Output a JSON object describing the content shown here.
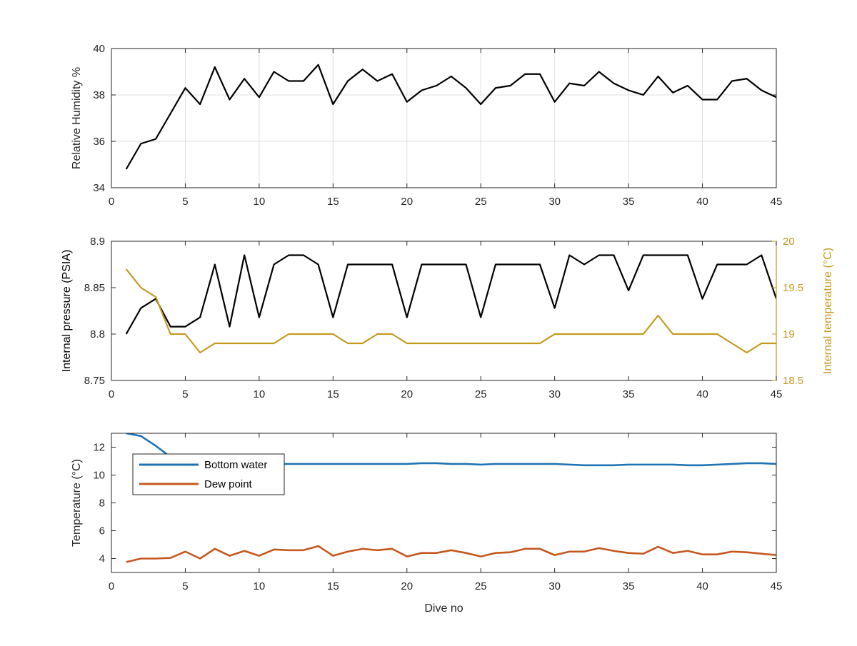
{
  "colors": {
    "axis": "#262626",
    "grid": "#dfdfdf",
    "black_series": "#000000",
    "right_axis": "#c49a1e",
    "temperature_series": "#c49a1e",
    "bottom_water": "#1f73b2",
    "dew_point": "#c5581f"
  },
  "chart_data": [
    {
      "type": "line",
      "xlabel": "",
      "ylabel": "Relative Humidity %",
      "xlim": [
        0,
        45
      ],
      "ylim": [
        34,
        40
      ],
      "xticks": [
        "0",
        "5",
        "10",
        "15",
        "20",
        "25",
        "30",
        "35",
        "40",
        "45"
      ],
      "yticks": [
        "34",
        "36",
        "38",
        "40"
      ],
      "grid": true,
      "series": [
        {
          "color": "#000000",
          "x": [
            1,
            2,
            3,
            4,
            5,
            6,
            7,
            8,
            9,
            10,
            11,
            12,
            13,
            14,
            15,
            16,
            17,
            18,
            19,
            20,
            21,
            22,
            23,
            24,
            25,
            26,
            27,
            28,
            29,
            30,
            31,
            32,
            33,
            34,
            35,
            36,
            37,
            38,
            39,
            40,
            41,
            42,
            43,
            44,
            45
          ],
          "values": [
            34.8,
            35.9,
            36.1,
            37.2,
            38.3,
            37.6,
            39.2,
            37.8,
            38.7,
            37.9,
            39.0,
            38.6,
            38.6,
            39.3,
            37.6,
            38.6,
            39.1,
            38.6,
            38.9,
            37.7,
            38.2,
            38.4,
            38.8,
            38.3,
            37.6,
            38.3,
            38.4,
            38.9,
            38.9,
            37.7,
            38.5,
            38.4,
            39.0,
            38.5,
            38.2,
            38.0,
            38.8,
            38.1,
            38.4,
            37.8,
            37.8,
            38.6,
            38.7,
            38.2,
            37.9
          ]
        }
      ]
    },
    {
      "type": "line",
      "xlabel": "",
      "ylabel": "Internal pressure (PSIA)",
      "y2label": "Internal temperature (°C)",
      "xlim": [
        0,
        45
      ],
      "ylim": [
        8.75,
        8.9
      ],
      "y2lim": [
        18.5,
        20
      ],
      "xticks": [
        "0",
        "5",
        "10",
        "15",
        "20",
        "25",
        "30",
        "35",
        "40",
        "45"
      ],
      "yticks": [
        "8.75",
        "8.8",
        "8.85",
        "8.9"
      ],
      "y2ticks": [
        "18.5",
        "19",
        "19.5",
        "20"
      ],
      "grid": false,
      "series": [
        {
          "axis": "left",
          "color": "#000000",
          "x": [
            1,
            2,
            3,
            4,
            5,
            6,
            7,
            8,
            9,
            10,
            11,
            12,
            13,
            14,
            15,
            16,
            17,
            18,
            19,
            20,
            21,
            22,
            23,
            24,
            25,
            26,
            27,
            28,
            29,
            30,
            31,
            32,
            33,
            34,
            35,
            36,
            37,
            38,
            39,
            40,
            41,
            42,
            43,
            44,
            45
          ],
          "values": [
            8.8,
            8.828,
            8.838,
            8.808,
            8.808,
            8.818,
            8.875,
            8.808,
            8.885,
            8.818,
            8.875,
            8.885,
            8.885,
            8.875,
            8.818,
            8.875,
            8.875,
            8.875,
            8.875,
            8.818,
            8.875,
            8.875,
            8.875,
            8.875,
            8.818,
            8.875,
            8.875,
            8.875,
            8.875,
            8.828,
            8.885,
            8.875,
            8.885,
            8.885,
            8.847,
            8.885,
            8.885,
            8.885,
            8.885,
            8.838,
            8.875,
            8.875,
            8.875,
            8.885,
            8.838
          ]
        },
        {
          "axis": "right",
          "color": "#c49a1e",
          "x": [
            1,
            2,
            3,
            4,
            5,
            6,
            7,
            8,
            9,
            10,
            11,
            12,
            13,
            14,
            15,
            16,
            17,
            18,
            19,
            20,
            21,
            22,
            23,
            24,
            25,
            26,
            27,
            28,
            29,
            30,
            31,
            32,
            33,
            34,
            35,
            36,
            37,
            38,
            39,
            40,
            41,
            42,
            43,
            44,
            45
          ],
          "values": [
            19.7,
            19.5,
            19.4,
            19.0,
            19.0,
            18.8,
            18.9,
            18.9,
            18.9,
            18.9,
            18.9,
            19.0,
            19.0,
            19.0,
            19.0,
            18.9,
            18.9,
            19.0,
            19.0,
            18.9,
            18.9,
            18.9,
            18.9,
            18.9,
            18.9,
            18.9,
            18.9,
            18.9,
            18.9,
            19.0,
            19.0,
            19.0,
            19.0,
            19.0,
            19.0,
            19.0,
            19.2,
            19.0,
            19.0,
            19.0,
            19.0,
            18.9,
            18.8,
            18.9,
            18.9
          ]
        }
      ]
    },
    {
      "type": "line",
      "xlabel": "Dive no",
      "ylabel": "Temperature (°C)",
      "xlim": [
        0,
        45
      ],
      "ylim": [
        3,
        13
      ],
      "xticks": [
        "0",
        "5",
        "10",
        "15",
        "20",
        "25",
        "30",
        "35",
        "40",
        "45"
      ],
      "yticks": [
        "4",
        "6",
        "8",
        "10",
        "12"
      ],
      "grid": false,
      "legend": "top-left",
      "series": [
        {
          "name": "Bottom water",
          "color": "#1f73b2",
          "x": [
            1,
            2,
            3,
            4,
            5,
            6,
            7,
            8,
            9,
            10,
            11,
            12,
            13,
            14,
            15,
            16,
            17,
            18,
            19,
            20,
            21,
            22,
            23,
            24,
            25,
            26,
            27,
            28,
            29,
            30,
            31,
            32,
            33,
            34,
            35,
            36,
            37,
            38,
            39,
            40,
            41,
            42,
            43,
            44,
            45
          ],
          "values": [
            13.0,
            12.8,
            12.1,
            11.3,
            11.0,
            10.9,
            10.85,
            10.8,
            10.8,
            10.8,
            10.8,
            10.8,
            10.8,
            10.8,
            10.8,
            10.8,
            10.8,
            10.8,
            10.8,
            10.8,
            10.85,
            10.85,
            10.8,
            10.8,
            10.75,
            10.8,
            10.8,
            10.8,
            10.8,
            10.8,
            10.75,
            10.7,
            10.7,
            10.7,
            10.75,
            10.75,
            10.75,
            10.75,
            10.7,
            10.7,
            10.75,
            10.8,
            10.85,
            10.85,
            10.8
          ]
        },
        {
          "name": "Dew point",
          "color": "#c5581f",
          "x": [
            1,
            2,
            3,
            4,
            5,
            6,
            7,
            8,
            9,
            10,
            11,
            12,
            13,
            14,
            15,
            16,
            17,
            18,
            19,
            20,
            21,
            22,
            23,
            24,
            25,
            26,
            27,
            28,
            29,
            30,
            31,
            32,
            33,
            34,
            35,
            36,
            37,
            38,
            39,
            40,
            41,
            42,
            43,
            44,
            45
          ],
          "values": [
            3.75,
            4.0,
            4.0,
            4.05,
            4.5,
            4.0,
            4.7,
            4.2,
            4.55,
            4.2,
            4.65,
            4.6,
            4.6,
            4.9,
            4.2,
            4.5,
            4.7,
            4.6,
            4.7,
            4.15,
            4.4,
            4.4,
            4.6,
            4.4,
            4.15,
            4.4,
            4.45,
            4.7,
            4.7,
            4.25,
            4.5,
            4.5,
            4.75,
            4.55,
            4.4,
            4.35,
            4.85,
            4.4,
            4.55,
            4.3,
            4.3,
            4.5,
            4.45,
            4.35,
            4.25
          ]
        }
      ]
    }
  ]
}
